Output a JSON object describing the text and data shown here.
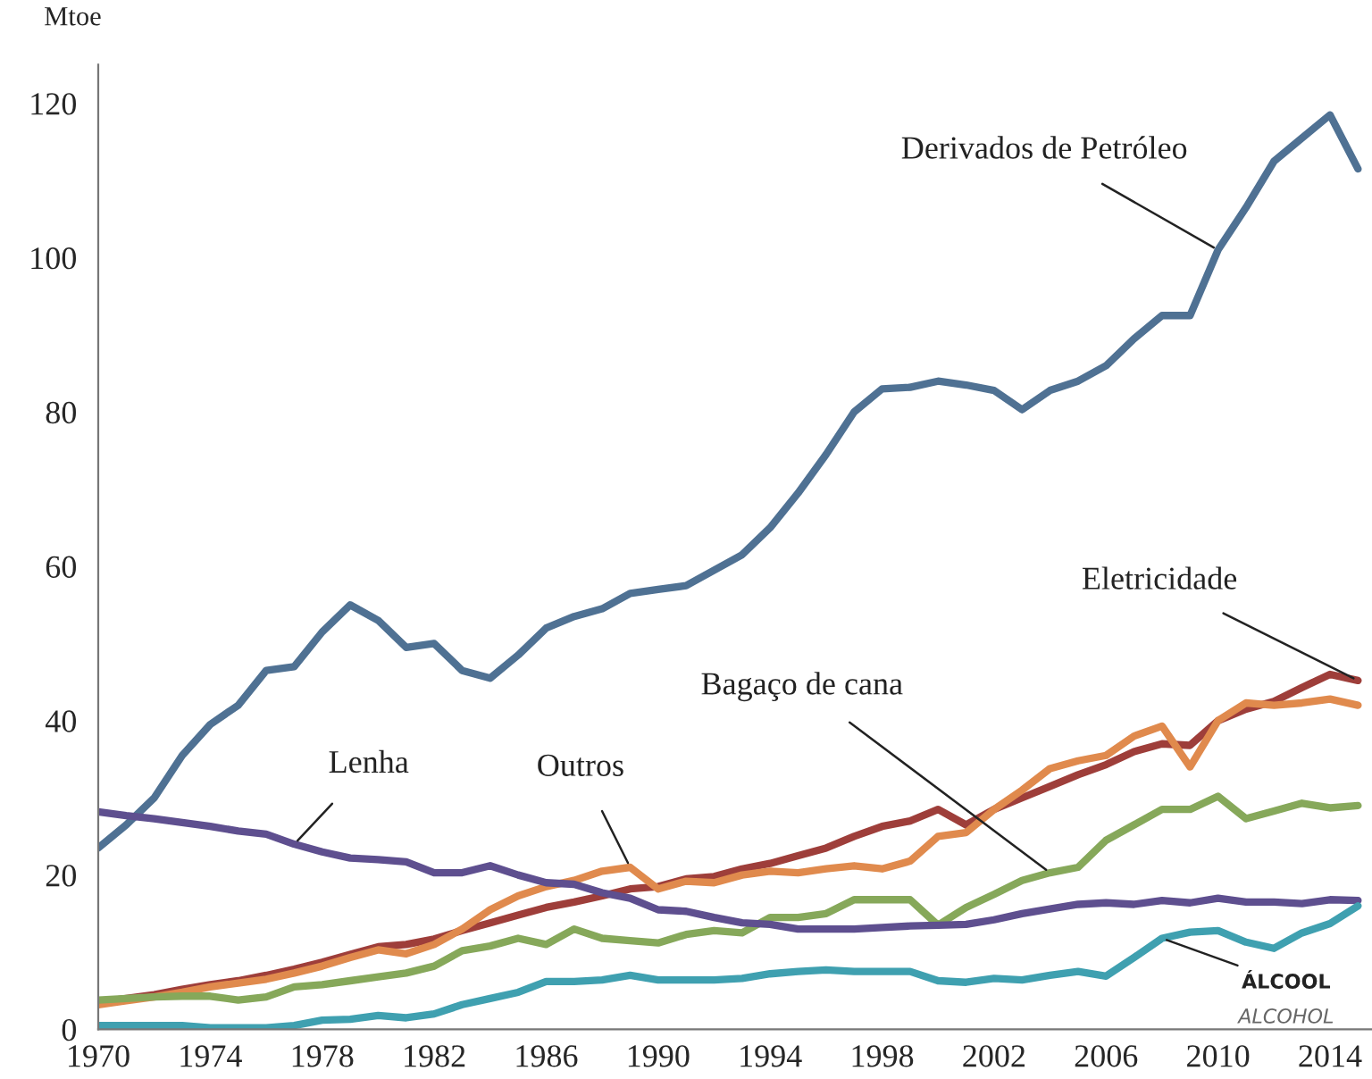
{
  "chart_data": {
    "type": "line",
    "ylabel": "Mtoe",
    "x": [
      1970,
      1971,
      1972,
      1973,
      1974,
      1975,
      1976,
      1977,
      1978,
      1979,
      1980,
      1981,
      1982,
      1983,
      1984,
      1985,
      1986,
      1987,
      1988,
      1989,
      1990,
      1991,
      1992,
      1993,
      1994,
      1995,
      1996,
      1997,
      1998,
      1999,
      2000,
      2001,
      2002,
      2003,
      2004,
      2005,
      2006,
      2007,
      2008,
      2009,
      2010,
      2011,
      2012,
      2013,
      2014,
      2015
    ],
    "series": [
      {
        "name": "Derivados de Petróleo",
        "color": "#4f7193",
        "values": [
          23.5,
          26.5,
          30,
          35.5,
          39.5,
          42,
          46.5,
          47,
          51.5,
          55,
          53,
          49.5,
          50,
          46.5,
          45.5,
          48.5,
          52,
          53.5,
          54.5,
          56.5,
          57,
          57.5,
          59.5,
          61.5,
          65,
          69.5,
          74.5,
          80,
          83,
          83.2,
          84,
          83.5,
          82.8,
          80.3,
          82.8,
          84,
          86,
          89.5,
          92.5,
          92.5,
          101,
          106.5,
          112.5,
          115.5,
          118.5,
          111.5
        ]
      },
      {
        "name": "Eletricidade",
        "color": "#9e3e3a",
        "values": [
          3.5,
          4,
          4.5,
          5.2,
          5.8,
          6.3,
          7,
          7.8,
          8.7,
          9.7,
          10.7,
          11,
          11.7,
          12.8,
          13.8,
          14.8,
          15.8,
          16.5,
          17.3,
          18.2,
          18.5,
          19.5,
          19.8,
          20.8,
          21.5,
          22.5,
          23.5,
          25,
          26.3,
          27,
          28.5,
          26.5,
          28.5,
          30,
          31.5,
          33,
          34.3,
          36,
          37,
          36.8,
          40,
          41.5,
          42.5,
          44.3,
          46,
          45.2
        ]
      },
      {
        "name": "Outros",
        "color": "#e08a4d",
        "values": [
          3.2,
          3.7,
          4.2,
          4.8,
          5.5,
          6,
          6.5,
          7.3,
          8.2,
          9.3,
          10.3,
          9.8,
          11,
          13,
          15.5,
          17.3,
          18.5,
          19.3,
          20.5,
          21,
          18.2,
          19.2,
          19,
          20,
          20.5,
          20.3,
          20.8,
          21.2,
          20.8,
          21.8,
          25,
          25.5,
          28.5,
          31,
          33.8,
          34.8,
          35.5,
          38,
          39.3,
          34,
          40,
          42.3,
          42,
          42.3,
          42.8,
          42
        ]
      },
      {
        "name": "Bagaço de cana",
        "color": "#86a85a",
        "values": [
          3.8,
          4,
          4.2,
          4.3,
          4.3,
          3.8,
          4.2,
          5.5,
          5.8,
          6.3,
          6.8,
          7.3,
          8.2,
          10.2,
          10.8,
          11.8,
          11,
          13,
          11.8,
          11.5,
          11.2,
          12.3,
          12.8,
          12.5,
          14.5,
          14.5,
          15,
          16.8,
          16.8,
          16.8,
          13.5,
          15.8,
          17.5,
          19.3,
          20.3,
          21,
          24.5,
          26.5,
          28.5,
          28.5,
          30.2,
          27.3,
          28.3,
          29.3,
          28.7,
          29
        ]
      },
      {
        "name": "Lenha",
        "color": "#5e4f8f",
        "values": [
          28.2,
          27.7,
          27.3,
          26.8,
          26.3,
          25.7,
          25.3,
          24,
          23,
          22.2,
          22,
          21.7,
          20.3,
          20.3,
          21.2,
          20,
          19,
          18.8,
          17.7,
          17,
          15.5,
          15.3,
          14.5,
          13.8,
          13.6,
          13,
          13,
          13,
          13.2,
          13.4,
          13.5,
          13.6,
          14.2,
          15,
          15.6,
          16.2,
          16.4,
          16.2,
          16.7,
          16.4,
          17,
          16.5,
          16.5,
          16.3,
          16.8,
          16.7
        ]
      },
      {
        "name": "ÁLCOOL",
        "color": "#3fa0b0",
        "values": [
          0.5,
          0.5,
          0.5,
          0.5,
          0.2,
          0.2,
          0.2,
          0.5,
          1.2,
          1.3,
          1.8,
          1.5,
          2,
          3.2,
          4,
          4.8,
          6.2,
          6.2,
          6.4,
          7,
          6.4,
          6.4,
          6.4,
          6.6,
          7.2,
          7.5,
          7.7,
          7.5,
          7.5,
          7.5,
          6.3,
          6.1,
          6.6,
          6.4,
          7,
          7.5,
          6.9,
          9.3,
          11.8,
          12.6,
          12.8,
          11.3,
          10.5,
          12.5,
          13.7,
          16
        ]
      }
    ],
    "annotations": [
      "ALCOHOL"
    ],
    "xlim": [
      1970,
      2015.5
    ],
    "xticks": [
      1970,
      1974,
      1978,
      1982,
      1986,
      1990,
      1994,
      1998,
      2002,
      2006,
      2010,
      2014
    ],
    "ylim": [
      0,
      125
    ],
    "yticks": [
      0,
      20,
      40,
      60,
      80,
      100,
      120
    ],
    "grid": false,
    "legend": false,
    "marker": "none",
    "line_style": "solid"
  }
}
